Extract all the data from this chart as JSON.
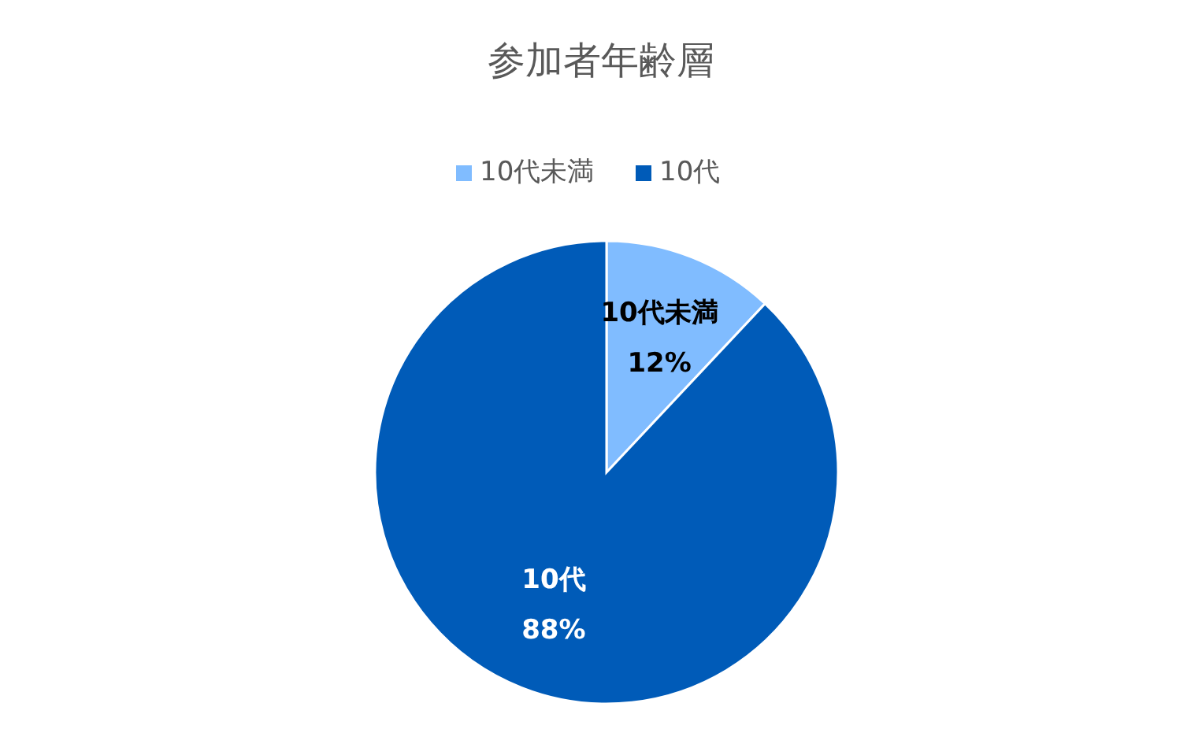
{
  "chart_data": {
    "type": "pie",
    "title": "参加者年齢層",
    "categories": [
      "10代未満",
      "10代"
    ],
    "values": [
      12,
      88
    ],
    "colors": [
      "#80bcff",
      "#005bb8"
    ],
    "legend": "top",
    "value_labels": [
      "12%",
      "88%"
    ]
  }
}
